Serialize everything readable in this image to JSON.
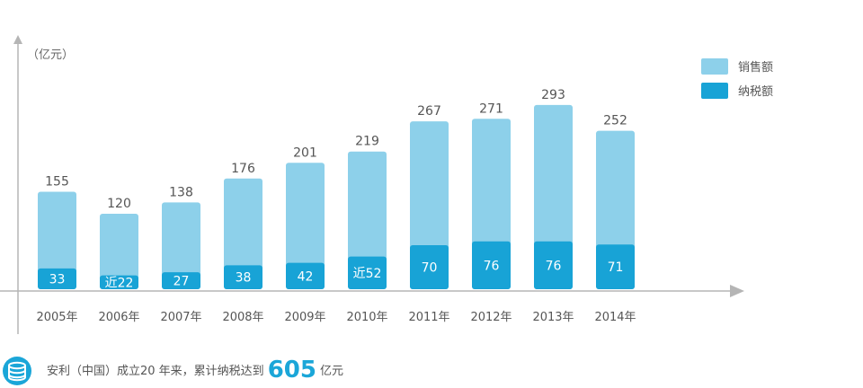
{
  "chart_data": {
    "type": "bar",
    "y_unit_label": "（亿元）",
    "categories": [
      "2005年",
      "2006年",
      "2007年",
      "2008年",
      "2009年",
      "2010年",
      "2011年",
      "2012年",
      "2013年",
      "2014年"
    ],
    "series": [
      {
        "name": "销售额",
        "color": "#8dd0ea",
        "values": [
          155,
          120,
          138,
          176,
          201,
          219,
          267,
          271,
          293,
          252
        ],
        "labels": [
          "155",
          "120",
          "138",
          "176",
          "201",
          "219",
          "267",
          "271",
          "293",
          "252"
        ]
      },
      {
        "name": "纳税额",
        "color": "#18a3d6",
        "values": [
          33,
          22,
          27,
          38,
          42,
          52,
          70,
          76,
          76,
          71
        ],
        "labels": [
          "33",
          "近22",
          "27",
          "38",
          "42",
          "近52",
          "70",
          "76",
          "76",
          "71"
        ]
      }
    ],
    "legend_position": "top-right",
    "grid": false
  },
  "footer": {
    "prefix": "安利（中国）成立20 年来，累计纳税达到",
    "amount": "605",
    "suffix": "亿元"
  },
  "icons": {
    "footer_icon": "coins-icon"
  }
}
